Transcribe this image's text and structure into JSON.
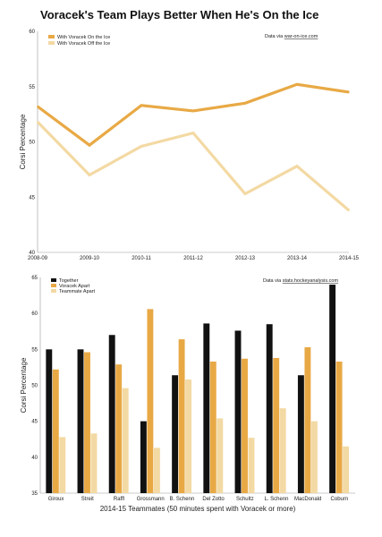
{
  "title": "Voracek's Team Plays Better When He's On the Ice",
  "colors": {
    "on": "#e8a945",
    "off": "#f3d9a3",
    "together": "#111111",
    "voracek_apart": "#e8a945",
    "teammate_apart": "#f3d9a3",
    "axis": "#999999"
  },
  "chart_data": [
    {
      "type": "line",
      "source_text": "Data via",
      "source_link": "war-on-ice.com",
      "ylabel": "Corsi Percentage",
      "xlabel": "",
      "ylim": [
        40,
        60
      ],
      "yticks": [
        40,
        45,
        50,
        55,
        60
      ],
      "x": [
        "2008-09",
        "2009-10",
        "2010-11",
        "2011-12",
        "2012-13",
        "2013-14",
        "2014-15"
      ],
      "legend_position": "top-left",
      "series": [
        {
          "name": "With Voracek On the Ice",
          "color": "#e8a945",
          "values": [
            53.2,
            49.7,
            53.3,
            52.8,
            53.5,
            55.2,
            54.5
          ]
        },
        {
          "name": "With Voracek Off the Ice",
          "color": "#f3d9a3",
          "values": [
            51.8,
            47.0,
            49.6,
            50.8,
            45.3,
            47.8,
            43.8
          ]
        }
      ]
    },
    {
      "type": "bar",
      "source_text": "Data via",
      "source_link": "stats.hockeyanalysis.com",
      "ylabel": "Corsi Percentage",
      "xlabel": "2014-15 Teammates (50 minutes spent with Voracek or more)",
      "ylim": [
        35,
        65
      ],
      "yticks": [
        35,
        40,
        45,
        50,
        55,
        60,
        65
      ],
      "legend_position": "top-left",
      "categories": [
        "Giroux",
        "Streit",
        "Raffl",
        "Grossmann",
        "B. Schenn",
        "Del Zotto",
        "Schultz",
        "L. Schenn",
        "MacDonald",
        "Coburn"
      ],
      "series": [
        {
          "name": "Together",
          "color": "#111111",
          "values": [
            55.0,
            55.0,
            57.0,
            45.0,
            51.4,
            58.6,
            57.6,
            58.5,
            51.4,
            64.0
          ]
        },
        {
          "name": "Voracek Apart",
          "color": "#e8a945",
          "values": [
            52.2,
            54.6,
            52.9,
            60.6,
            56.4,
            53.3,
            53.7,
            53.8,
            55.3,
            53.3
          ]
        },
        {
          "name": "Teammate Apart",
          "color": "#f3d9a3",
          "values": [
            42.8,
            43.3,
            49.6,
            41.3,
            50.8,
            45.4,
            42.7,
            46.8,
            45.0,
            41.5
          ]
        }
      ]
    }
  ]
}
